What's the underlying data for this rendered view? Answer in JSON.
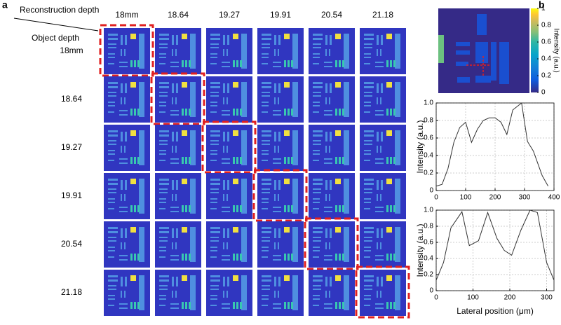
{
  "panel_a": {
    "label": "a",
    "column_title": "Reconstruction depth",
    "row_title": "Object depth",
    "columns": [
      "18mm",
      "18.64",
      "19.27",
      "19.91",
      "20.54",
      "21.18"
    ],
    "rows": [
      "18mm",
      "18.64",
      "19.27",
      "19.91",
      "20.54",
      "21.18"
    ]
  },
  "panel_b": {
    "label": "b",
    "colorbar": {
      "label": "Intensity (a.u.)",
      "lim": [
        0,
        1
      ],
      "ticks": [
        0,
        0.2,
        0.4,
        0.6,
        0.8,
        1
      ]
    }
  },
  "chart_data": [
    {
      "type": "line",
      "ylabel": "Intensity (a.u.)",
      "color": "#333333",
      "grid": true,
      "x": [
        0,
        20,
        40,
        60,
        80,
        100,
        120,
        140,
        160,
        180,
        200,
        220,
        240,
        260,
        290,
        310,
        330,
        360,
        380
      ],
      "values": [
        0.05,
        0.07,
        0.25,
        0.55,
        0.72,
        0.78,
        0.55,
        0.7,
        0.8,
        0.83,
        0.83,
        0.78,
        0.64,
        0.92,
        1.0,
        0.56,
        0.45,
        0.17,
        0.05
      ],
      "xlim": [
        0,
        400
      ],
      "xticks": [
        0,
        100,
        200,
        300,
        400
      ],
      "ylim": [
        0,
        1
      ],
      "yticks": [
        0,
        0.2,
        0.4,
        0.6,
        0.8,
        {
          "value": 1,
          "label": "1.0"
        }
      ]
    },
    {
      "type": "line",
      "ylabel": "Intensity (a.u.)",
      "xlabel": "Lateral position (μm)",
      "color": "#333333",
      "grid": true,
      "x": [
        0,
        20,
        40,
        70,
        90,
        115,
        140,
        165,
        185,
        205,
        230,
        255,
        275,
        300,
        320
      ],
      "values": [
        0.13,
        0.35,
        0.78,
        0.98,
        0.56,
        0.62,
        0.97,
        0.65,
        0.5,
        0.44,
        0.75,
        1.0,
        0.97,
        0.35,
        0.13
      ],
      "xlim": [
        0,
        320
      ],
      "xticks": [
        0,
        100,
        200,
        300
      ],
      "ylim": [
        0,
        1
      ],
      "yticks": [
        0,
        0.2,
        0.4,
        0.6,
        0.8,
        {
          "value": 1,
          "label": "1.0"
        }
      ]
    }
  ]
}
